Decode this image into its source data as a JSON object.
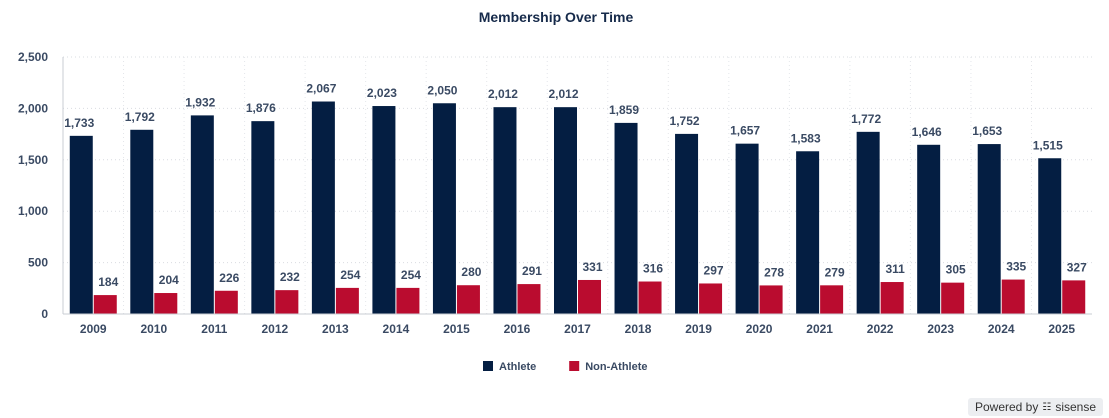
{
  "chart_data": {
    "type": "bar",
    "title": "Membership Over Time",
    "xlabel": "",
    "ylabel": "",
    "ylim": [
      0,
      2500
    ],
    "yticks": [
      "0",
      "500",
      "1,000",
      "1,500",
      "2,000",
      "2,500"
    ],
    "ytick_values": [
      0,
      500,
      1000,
      1500,
      2000,
      2500
    ],
    "grid": true,
    "legend_position": "bottom-center",
    "categories": [
      "2009",
      "2010",
      "2011",
      "2012",
      "2013",
      "2014",
      "2015",
      "2016",
      "2017",
      "2018",
      "2019",
      "2020",
      "2021",
      "2022",
      "2023",
      "2024",
      "2025"
    ],
    "series": [
      {
        "name": "Athlete",
        "color": "#041e42",
        "values": [
          1733,
          1792,
          1932,
          1876,
          2067,
          2023,
          2050,
          2012,
          2012,
          1859,
          1752,
          1657,
          1583,
          1772,
          1646,
          1653,
          1515
        ]
      },
      {
        "name": "Non-Athlete",
        "color": "#ba0c2f",
        "values": [
          184,
          204,
          226,
          232,
          254,
          254,
          280,
          291,
          331,
          316,
          297,
          278,
          279,
          311,
          305,
          335,
          327
        ]
      }
    ]
  },
  "footer": {
    "powered_by": "Powered by",
    "brand": "sisense"
  }
}
